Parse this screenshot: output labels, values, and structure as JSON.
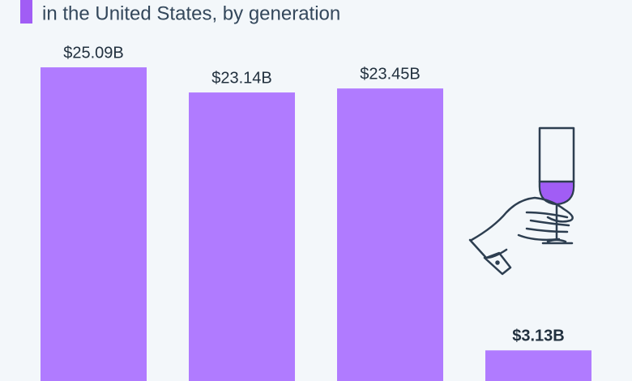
{
  "chart_data": {
    "type": "bar",
    "subtitle": "in the United States, by generation",
    "categories": [
      null,
      null,
      null,
      null
    ],
    "values": [
      25.09,
      23.14,
      23.45,
      3.13
    ],
    "value_labels": [
      "$25.09B",
      "$23.14B",
      "$23.45B",
      "$3.13B"
    ],
    "color": "#b07bff"
  }
}
